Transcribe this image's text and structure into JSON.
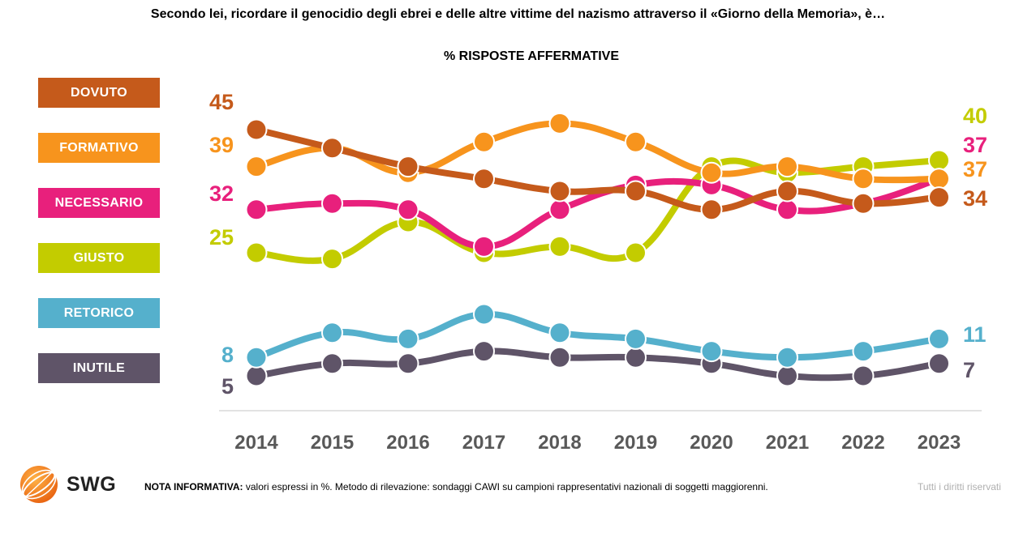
{
  "title": "Secondo lei, ricordare il genocidio degli ebrei e delle altre vittime del nazismo attraverso il «Giorno della Memoria», è…",
  "subtitle": "% RISPOSTE AFFERMATIVE",
  "footer": {
    "brand": "SWG",
    "note_label": "NOTA INFORMATIVA:",
    "note_text": " valori espressi in %. Metodo di rilevazione: sondaggi CAWI su campioni rappresentativi nazionali di soggetti maggiorenni.",
    "rights": "Tutti i diritti riservati"
  },
  "chart_data": {
    "type": "line",
    "title": "Secondo lei, ricordare il genocidio degli ebrei e delle altre vittime del nazismo attraverso il «Giorno della Memoria», è…",
    "subtitle": "% RISPOSTE AFFERMATIVE",
    "x": [
      "2014",
      "2015",
      "2016",
      "2017",
      "2018",
      "2019",
      "2020",
      "2021",
      "2022",
      "2023"
    ],
    "legend_position": "left",
    "grid": false,
    "series": [
      {
        "name": "DOVUTO",
        "color": "#c55a1b",
        "values": [
          45,
          42,
          39,
          37,
          35,
          35,
          32,
          35,
          33,
          34
        ],
        "start_label": "45",
        "end_label": "34"
      },
      {
        "name": "FORMATIVO",
        "color": "#f7941d",
        "values": [
          39,
          42,
          38,
          43,
          46,
          43,
          38,
          39,
          37,
          37
        ],
        "start_label": "39",
        "end_label": "37"
      },
      {
        "name": "NECESSARIO",
        "color": "#e8207c",
        "values": [
          32,
          33,
          32,
          26,
          32,
          36,
          36,
          32,
          33,
          37
        ],
        "start_label": "32",
        "end_label": "37"
      },
      {
        "name": "GIUSTO",
        "color": "#c3cc00",
        "values": [
          25,
          24,
          30,
          25,
          26,
          25,
          39,
          38,
          39,
          40
        ],
        "start_label": "25",
        "end_label": "40"
      },
      {
        "name": "RETORICO",
        "color": "#55b0cc",
        "values": [
          8,
          12,
          11,
          15,
          12,
          11,
          9,
          8,
          9,
          11
        ],
        "start_label": "8",
        "end_label": "11"
      },
      {
        "name": "INUTILE",
        "color": "#5f5468",
        "values": [
          5,
          7,
          7,
          9,
          8,
          8,
          7,
          5,
          5,
          7
        ],
        "start_label": "5",
        "end_label": "7"
      }
    ]
  }
}
